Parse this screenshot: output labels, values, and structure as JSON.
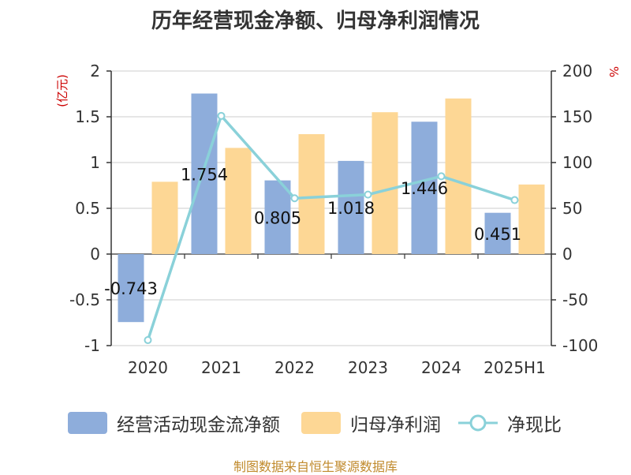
{
  "title": "历年经营现金净额、归母净利润情况",
  "source": "制图数据来自恒生聚源数据库",
  "chart_data": {
    "type": "bar",
    "categories": [
      "2020",
      "2021",
      "2022",
      "2023",
      "2024",
      "2025H1"
    ],
    "left_axis": {
      "unit": "(亿元)",
      "range": [
        -1,
        2
      ],
      "ticks": [
        2,
        1.5,
        1,
        0.5,
        0,
        -0.5,
        -1
      ],
      "tick_labels": [
        "2",
        "1.5",
        "1",
        "0.5",
        "0",
        "-0.5",
        "-1"
      ]
    },
    "right_axis": {
      "unit": "%",
      "range": [
        -100,
        200
      ],
      "ticks": [
        200,
        150,
        100,
        50,
        0,
        -50,
        -100
      ],
      "tick_labels": [
        "200",
        "150",
        "100",
        "50",
        "0",
        "-50",
        "-100"
      ]
    },
    "grid": true,
    "legend_position": "bottom",
    "series": [
      {
        "name": "经营活动现金流净额",
        "type": "bar",
        "axis": "left",
        "color": "#8eaddb",
        "values": [
          -0.743,
          1.754,
          0.805,
          1.018,
          1.446,
          0.451
        ],
        "labels": [
          "-0.743",
          "1.754",
          "0.805",
          "1.018",
          "1.446",
          "0.451"
        ]
      },
      {
        "name": "归母净利润",
        "type": "bar",
        "axis": "left",
        "color": "#fdd795",
        "values": [
          0.79,
          1.16,
          1.31,
          1.55,
          1.7,
          0.76
        ]
      },
      {
        "name": "净现比",
        "type": "line",
        "axis": "right",
        "color": "#8ad1d9",
        "values": [
          -94,
          151,
          61,
          65,
          85,
          59
        ]
      }
    ]
  }
}
